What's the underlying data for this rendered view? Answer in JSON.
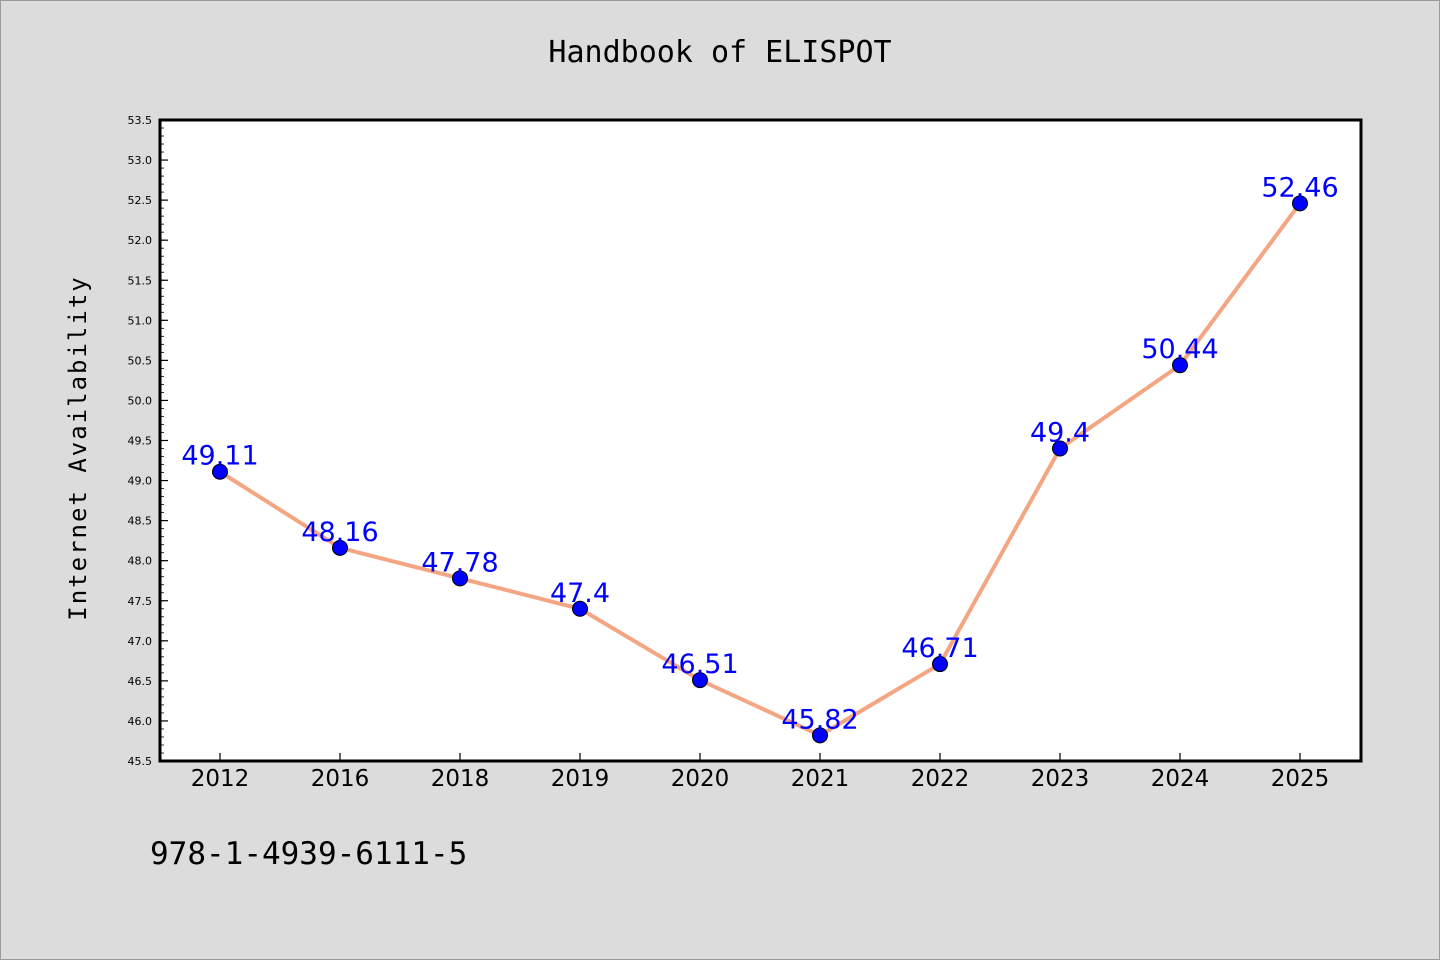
{
  "chart_data": {
    "type": "line",
    "title": "Handbook of ELISPOT",
    "xlabel": "",
    "ylabel": "Internet Availability",
    "categories": [
      "2012",
      "2016",
      "2018",
      "2019",
      "2020",
      "2021",
      "2022",
      "2023",
      "2024",
      "2025"
    ],
    "series": [
      {
        "values": [
          49.11,
          48.16,
          47.78,
          47.4,
          46.51,
          45.82,
          46.71,
          49.4,
          50.44,
          52.46
        ],
        "data_labels": [
          "49.11",
          "48.16",
          "47.78",
          "47.4",
          "46.51",
          "45.82",
          "46.71",
          "49.4",
          "50.44",
          "52.46"
        ]
      }
    ],
    "ylim": [
      45.5,
      53.5
    ],
    "yticks": [
      "45.5",
      "46.0",
      "46.5",
      "47.0",
      "47.5",
      "48.0",
      "48.5",
      "49.0",
      "49.5",
      "50.0",
      "50.5",
      "51.0",
      "51.5",
      "52.0",
      "52.5",
      "53.0",
      "53.5"
    ],
    "grid": false,
    "legend": "none",
    "annotation": "978-1-4939-6111-5",
    "colors": {
      "background": "#dcdcdc",
      "plot_area": "#ffffff",
      "line": "#f4a582",
      "marker": "#0000ff",
      "data_label": "#0000ff",
      "text": "#000000"
    }
  }
}
